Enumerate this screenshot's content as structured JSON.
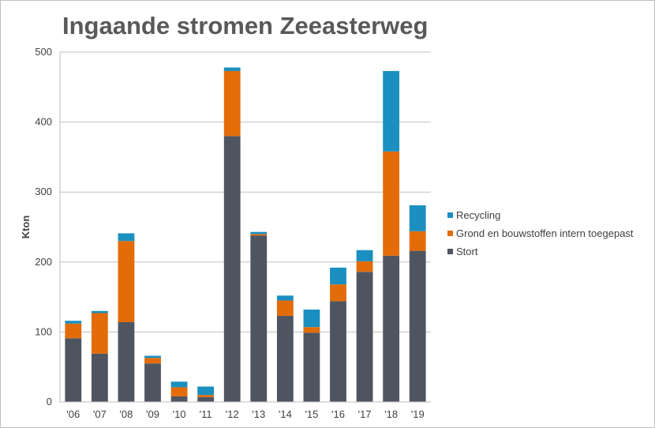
{
  "chart_data": {
    "type": "bar",
    "stacked": true,
    "title": "Ingaande stromen Zeeasterweg",
    "xlabel": "",
    "ylabel": "Kton",
    "ylim": [
      0,
      500
    ],
    "yticks": [
      0,
      100,
      200,
      300,
      400,
      500
    ],
    "grid": true,
    "legend_position": "right",
    "categories": [
      "'06",
      "'07",
      "'08",
      "'09",
      "'10",
      "'11",
      "'12",
      "'13",
      "'14",
      "'15",
      "'16",
      "'17",
      "'18",
      "'19"
    ],
    "series": [
      {
        "name": "Stort",
        "color": "#4f5560",
        "values": [
          91,
          69,
          114,
          55,
          8,
          7,
          380,
          238,
          123,
          99,
          144,
          186,
          209,
          216
        ]
      },
      {
        "name": "Grond en bouwstoffen intern toegepast",
        "color": "#e36c09",
        "values": [
          21,
          58,
          116,
          8,
          13,
          3,
          93,
          2,
          22,
          8,
          24,
          15,
          149,
          28
        ]
      },
      {
        "name": "Recycling",
        "color": "#1a8fc0",
        "values": [
          4,
          3,
          11,
          3,
          8,
          12,
          5,
          3,
          7,
          25,
          24,
          16,
          115,
          37
        ]
      }
    ]
  }
}
